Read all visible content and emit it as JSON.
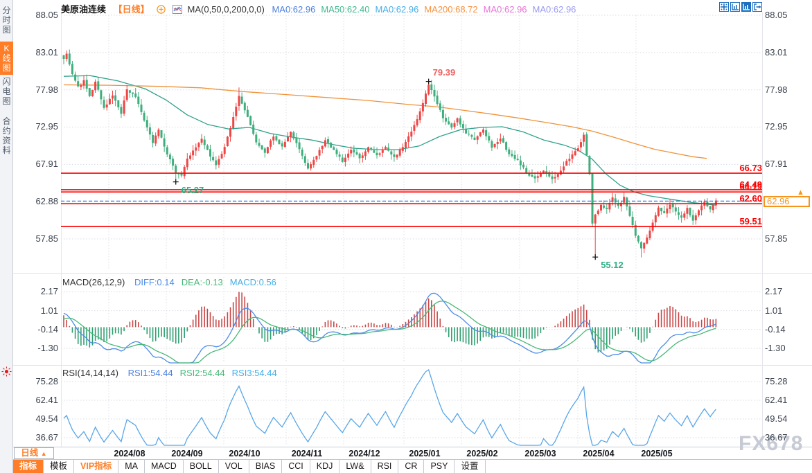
{
  "sidebar": {
    "items": [
      {
        "name": "sidebar-item-timeshare",
        "label": "分时图",
        "active": false
      },
      {
        "name": "sidebar-item-kline",
        "label": "K线图",
        "active": true
      },
      {
        "name": "sidebar-item-lightning",
        "label": "闪电图",
        "active": false
      },
      {
        "name": "sidebar-item-contract-info",
        "label": "合约资料",
        "active": false
      }
    ]
  },
  "topbar": {
    "symbol": "美原油连续",
    "period_tag": "【日线】",
    "ma_group_label": "MA(0,50,0,200,0,0)",
    "ma_values": [
      {
        "label": "MA0:62.96",
        "color": "#4a7fe0"
      },
      {
        "label": "MA50:62.40",
        "color": "#3fba8d"
      },
      {
        "label": "MA0:62.96",
        "color": "#45aee6"
      },
      {
        "label": "MA200:68.72",
        "color": "#f59240"
      },
      {
        "label": "MA0:62.96",
        "color": "#e773d8"
      },
      {
        "label": "MA0:62.96",
        "color": "#9a9af0"
      }
    ],
    "icons": [
      {
        "name": "pan-crosshair-icon"
      },
      {
        "name": "axis-scale-icon"
      },
      {
        "name": "axis-scale-active-icon"
      },
      {
        "name": "exit-chart-icon"
      }
    ]
  },
  "macd_header": {
    "title": "MACD(26,12,9)",
    "values": [
      {
        "label": "DIFF:0.14",
        "color": "#4d8be8"
      },
      {
        "label": "DEA:-0.13",
        "color": "#47b877"
      },
      {
        "label": "MACD:0.56",
        "color": "#45aee6"
      }
    ]
  },
  "rsi_header": {
    "title": "RSI(14,14,14)",
    "values": [
      {
        "label": "RSI1:54.44",
        "color": "#4a7fe0"
      },
      {
        "label": "RSI2:54.44",
        "color": "#47b877"
      },
      {
        "label": "RSI3:54.44",
        "color": "#45aee6"
      }
    ]
  },
  "period_selector": {
    "label": "日线",
    "arrow": "▲"
  },
  "bottom_tabs": {
    "items": [
      {
        "name": "tab-indicators",
        "label": "指标",
        "style": "active"
      },
      {
        "name": "tab-templates",
        "label": "模板",
        "style": "normal"
      },
      {
        "name": "tab-vip-indicators",
        "label": "VIP指标",
        "style": "vip"
      },
      {
        "name": "tab-ma",
        "label": "MA",
        "style": "normal"
      },
      {
        "name": "tab-macd",
        "label": "MACD",
        "style": "normal"
      },
      {
        "name": "tab-boll",
        "label": "BOLL",
        "style": "normal"
      },
      {
        "name": "tab-vol",
        "label": "VOL",
        "style": "normal"
      },
      {
        "name": "tab-bias",
        "label": "BIAS",
        "style": "normal"
      },
      {
        "name": "tab-cci",
        "label": "CCI",
        "style": "normal"
      },
      {
        "name": "tab-kdj",
        "label": "KDJ",
        "style": "normal"
      },
      {
        "name": "tab-lwr",
        "label": "LW&",
        "style": "normal"
      },
      {
        "name": "tab-rsi",
        "label": "RSI",
        "style": "normal"
      },
      {
        "name": "tab-cr",
        "label": "CR",
        "style": "normal"
      },
      {
        "name": "tab-psy",
        "label": "PSY",
        "style": "normal"
      },
      {
        "name": "tab-settings",
        "label": "设置",
        "style": "normal"
      }
    ]
  },
  "watermark": "FX678",
  "chart_data": {
    "type": "candlestick",
    "title": "美原油连续 日线",
    "x_axis_labels": [
      "2024/08",
      "2024/09",
      "2024/10",
      "2024/11",
      "2024/12",
      "2025/01",
      "2025/02",
      "2025/03",
      "2025/04",
      "2025/05"
    ],
    "main_panel": {
      "ylim": [
        55.0,
        88.05
      ],
      "y_ticks": [
        88.05,
        83.01,
        77.98,
        72.95,
        67.91,
        62.88,
        57.85
      ],
      "horizontal_levels": [
        {
          "price": 66.73,
          "label": "66.73"
        },
        {
          "price": 64.19,
          "label": "64.19"
        },
        {
          "price": 64.49,
          "label": "64.49"
        },
        {
          "price": 62.6,
          "label": "62.60"
        },
        {
          "price": 59.51,
          "label": "59.51"
        }
      ],
      "current_price": {
        "value": 62.96,
        "label": "62.96"
      },
      "annotations": [
        {
          "label": "79.39",
          "price": 79.39,
          "index": 127,
          "kind": "peak",
          "color": "#f06060"
        },
        {
          "label": "65.27",
          "price": 65.27,
          "index": 39,
          "kind": "trough",
          "color": "#2fae85"
        },
        {
          "label": "55.12",
          "price": 55.12,
          "index": 185,
          "kind": "trough",
          "color": "#2fae85"
        }
      ],
      "candles": {
        "count": 228,
        "up_color": "#ef4545",
        "down_color": "#3fae7d",
        "close_anchors": [
          [
            0,
            82.3
          ],
          [
            1,
            82.8
          ],
          [
            3,
            80.2
          ],
          [
            5,
            78.3
          ],
          [
            7,
            79.2
          ],
          [
            9,
            77.0
          ],
          [
            11,
            79.0
          ],
          [
            14,
            75.6
          ],
          [
            17,
            77.2
          ],
          [
            20,
            74.8
          ],
          [
            22,
            78.0
          ],
          [
            25,
            77.0
          ],
          [
            28,
            73.8
          ],
          [
            31,
            70.8
          ],
          [
            33,
            72.6
          ],
          [
            36,
            69.4
          ],
          [
            39,
            66.8
          ],
          [
            41,
            66.3
          ],
          [
            43,
            68.6
          ],
          [
            46,
            70.2
          ],
          [
            48,
            71.4
          ],
          [
            51,
            68.9
          ],
          [
            53,
            67.8
          ],
          [
            56,
            70.2
          ],
          [
            59,
            74.2
          ],
          [
            61,
            77.2
          ],
          [
            64,
            74.4
          ],
          [
            67,
            70.9
          ],
          [
            70,
            69.4
          ],
          [
            73,
            71.8
          ],
          [
            76,
            70.2
          ],
          [
            79,
            72.3
          ],
          [
            82,
            69.9
          ],
          [
            85,
            67.3
          ],
          [
            88,
            69.0
          ],
          [
            91,
            71.2
          ],
          [
            94,
            69.8
          ],
          [
            97,
            68.3
          ],
          [
            100,
            69.8
          ],
          [
            103,
            68.8
          ],
          [
            106,
            70.2
          ],
          [
            109,
            69.0
          ],
          [
            112,
            70.3
          ],
          [
            115,
            68.8
          ],
          [
            118,
            70.4
          ],
          [
            121,
            72.2
          ],
          [
            124,
            75.0
          ],
          [
            127,
            78.8
          ],
          [
            129,
            77.0
          ],
          [
            132,
            74.2
          ],
          [
            135,
            72.8
          ],
          [
            137,
            74.0
          ],
          [
            140,
            72.2
          ],
          [
            143,
            71.2
          ],
          [
            146,
            72.6
          ],
          [
            149,
            70.2
          ],
          [
            152,
            71.5
          ],
          [
            155,
            69.2
          ],
          [
            158,
            68.5
          ],
          [
            161,
            66.8
          ],
          [
            164,
            65.9
          ],
          [
            167,
            67.2
          ],
          [
            170,
            65.9
          ],
          [
            173,
            67.2
          ],
          [
            176,
            68.8
          ],
          [
            179,
            70.2
          ],
          [
            181,
            71.8
          ],
          [
            183,
            66.5
          ],
          [
            184,
            60.0
          ],
          [
            185,
            61.2
          ],
          [
            187,
            62.4
          ],
          [
            189,
            61.8
          ],
          [
            191,
            63.4
          ],
          [
            193,
            62.2
          ],
          [
            195,
            63.4
          ],
          [
            197,
            61.0
          ],
          [
            199,
            58.3
          ],
          [
            201,
            56.6
          ],
          [
            203,
            57.9
          ],
          [
            205,
            59.9
          ],
          [
            207,
            62.2
          ],
          [
            209,
            61.2
          ],
          [
            211,
            62.6
          ],
          [
            213,
            61.5
          ],
          [
            215,
            60.6
          ],
          [
            217,
            62.0
          ],
          [
            219,
            60.3
          ],
          [
            221,
            61.6
          ],
          [
            223,
            62.9
          ],
          [
            225,
            61.9
          ],
          [
            227,
            62.96
          ]
        ],
        "high_overrides": {
          "1": 83.3,
          "22": 78.6,
          "61": 78.3,
          "127": 79.39
        },
        "low_overrides": {
          "39": 65.27,
          "164": 65.4,
          "170": 65.3,
          "185": 55.12,
          "201": 55.35
        }
      },
      "ma50": {
        "name": "MA50",
        "color": "#2fa08c",
        "points": [
          [
            92,
            79.8
          ],
          [
            130,
            79.9
          ],
          [
            170,
            79.2
          ],
          [
            210,
            78.1
          ],
          [
            240,
            76.6
          ],
          [
            270,
            74.6
          ],
          [
            300,
            73.3
          ],
          [
            330,
            72.7
          ],
          [
            360,
            72.9
          ],
          [
            390,
            72.1
          ],
          [
            420,
            71.6
          ],
          [
            450,
            71.2
          ],
          [
            480,
            70.6
          ],
          [
            510,
            70.1
          ],
          [
            545,
            69.9
          ],
          [
            575,
            69.9
          ],
          [
            605,
            70.4
          ],
          [
            635,
            71.7
          ],
          [
            665,
            72.6
          ],
          [
            695,
            72.9
          ],
          [
            725,
            73.0
          ],
          [
            755,
            72.3
          ],
          [
            785,
            71.2
          ],
          [
            815,
            70.5
          ],
          [
            835,
            69.8
          ],
          [
            855,
            68.6
          ],
          [
            875,
            66.6
          ],
          [
            895,
            65.1
          ],
          [
            915,
            64.2
          ],
          [
            935,
            63.7
          ],
          [
            955,
            63.4
          ],
          [
            975,
            63.1
          ],
          [
            995,
            62.8
          ],
          [
            1015,
            62.6
          ],
          [
            1034,
            62.4
          ]
        ]
      },
      "ma200": {
        "name": "MA200",
        "color": "#ef9238",
        "points": [
          [
            92,
            78.65
          ],
          [
            160,
            78.6
          ],
          [
            230,
            78.45
          ],
          [
            290,
            78.25
          ],
          [
            350,
            77.75
          ],
          [
            410,
            77.35
          ],
          [
            470,
            76.95
          ],
          [
            530,
            76.55
          ],
          [
            590,
            76.0
          ],
          [
            630,
            75.7
          ],
          [
            670,
            75.2
          ],
          [
            710,
            74.7
          ],
          [
            750,
            74.15
          ],
          [
            790,
            73.55
          ],
          [
            825,
            73.0
          ],
          [
            855,
            72.4
          ],
          [
            885,
            71.6
          ],
          [
            915,
            70.75
          ],
          [
            945,
            69.95
          ],
          [
            975,
            69.4
          ],
          [
            1000,
            68.95
          ],
          [
            1020,
            68.72
          ]
        ]
      }
    },
    "macd_panel": {
      "params": "(26,12,9)",
      "diff": 0.14,
      "dea": -0.13,
      "macd": 0.56,
      "y_ticks": [
        2.17,
        1.01,
        -0.14,
        -1.3
      ],
      "colors": {
        "diff": "#4d8be8",
        "dea": "#47b877",
        "hist_up": "#c94848",
        "hist_down": "#2f9e70"
      }
    },
    "rsi_panel": {
      "params": "(14,14,14)",
      "rsi1": 54.44,
      "rsi2": 54.44,
      "rsi3": 54.44,
      "y_ticks": [
        75.28,
        62.41,
        49.54,
        36.67
      ],
      "color": "#58a6e8"
    }
  }
}
